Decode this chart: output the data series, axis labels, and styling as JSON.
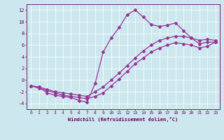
{
  "xlabel": "Windchill (Refroidissement éolien,°C)",
  "background_color": "#cce8ee",
  "line_color": "#993399",
  "marker": "D",
  "markersize": 2.0,
  "linewidth": 0.9,
  "xlim": [
    -0.5,
    23.5
  ],
  "ylim": [
    -5,
    13
  ],
  "xticks": [
    0,
    1,
    2,
    3,
    4,
    5,
    6,
    7,
    8,
    9,
    10,
    11,
    12,
    13,
    14,
    15,
    16,
    17,
    18,
    19,
    20,
    21,
    22,
    23
  ],
  "yticks": [
    -4,
    -2,
    0,
    2,
    4,
    6,
    8,
    10,
    12
  ],
  "series": {
    "line1": {
      "x": [
        0,
        1,
        2,
        3,
        4,
        5,
        6,
        7,
        8,
        9,
        10,
        11,
        12,
        13,
        14,
        15,
        16,
        17,
        18,
        19,
        20,
        21,
        22,
        23
      ],
      "y": [
        -1,
        -1.2,
        -2.2,
        -2.6,
        -2.8,
        -3.0,
        -3.5,
        -3.8,
        -0.6,
        4.8,
        7.2,
        9.0,
        11.2,
        12.0,
        10.8,
        9.5,
        9.2,
        9.4,
        9.8,
        8.5,
        7.2,
        6.2,
        6.5,
        6.5
      ]
    },
    "line2": {
      "x": [
        0,
        1,
        2,
        3,
        4,
        5,
        6,
        7,
        8,
        9,
        10,
        11,
        12,
        13,
        14,
        15,
        16,
        17,
        18,
        19,
        20,
        21,
        22,
        23
      ],
      "y": [
        -1.0,
        -1.2,
        -1.6,
        -2.0,
        -2.2,
        -2.4,
        -2.6,
        -2.8,
        -2.0,
        -1.2,
        0.0,
        1.2,
        2.5,
        3.8,
        5.0,
        6.0,
        6.8,
        7.2,
        7.5,
        7.5,
        7.2,
        6.8,
        7.0,
        6.8
      ]
    },
    "line3": {
      "x": [
        0,
        1,
        2,
        3,
        4,
        5,
        6,
        7,
        8,
        9,
        10,
        11,
        12,
        13,
        14,
        15,
        16,
        17,
        18,
        19,
        20,
        21,
        22,
        23
      ],
      "y": [
        -1.0,
        -1.4,
        -1.8,
        -2.2,
        -2.6,
        -2.8,
        -3.0,
        -3.2,
        -2.8,
        -2.2,
        -1.0,
        0.2,
        1.5,
        2.8,
        3.8,
        4.8,
        5.5,
        6.0,
        6.4,
        6.2,
        6.0,
        5.5,
        5.8,
        6.5
      ]
    }
  }
}
